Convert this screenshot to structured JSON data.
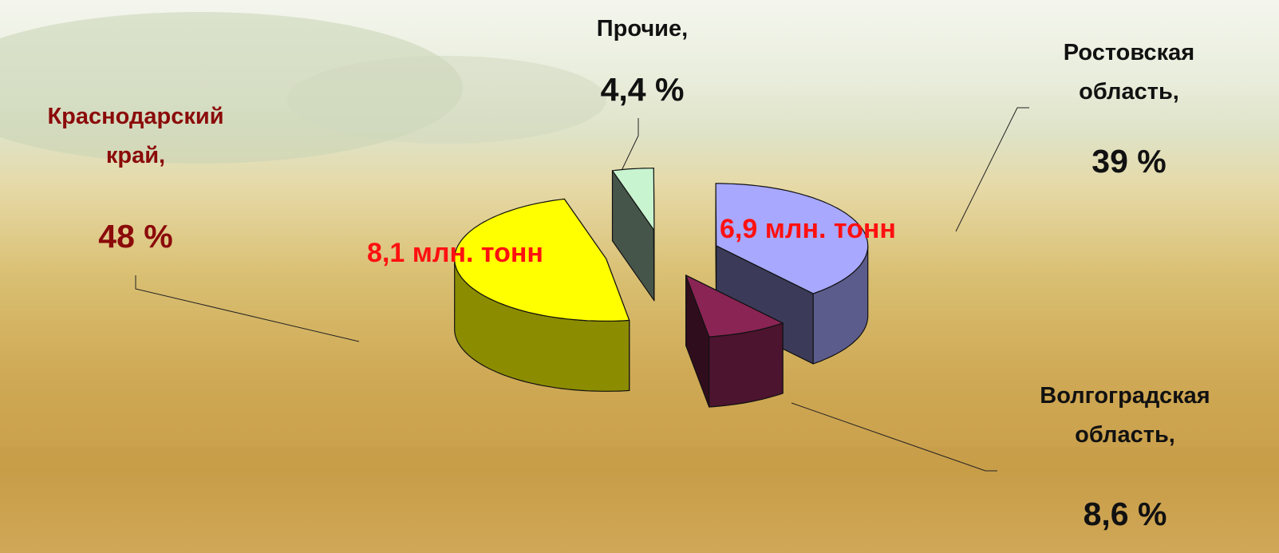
{
  "chart_data": {
    "type": "pie3d",
    "categories": [
      "Прочие,",
      "Ростовская область,",
      "Волгоградская область,",
      "Краснодарский край,"
    ],
    "values": [
      4.4,
      39,
      8.6,
      48
    ],
    "value_labels": [
      "4,4 %",
      "39 %",
      "8,6 %",
      "48 %"
    ],
    "colors": [
      "#c8f4d0",
      "#a8a8ff",
      "#8a2454",
      "#ffff00"
    ],
    "annotations": [
      "6,9 млн. тонн",
      "8,1 млн. тонн"
    ]
  }
}
